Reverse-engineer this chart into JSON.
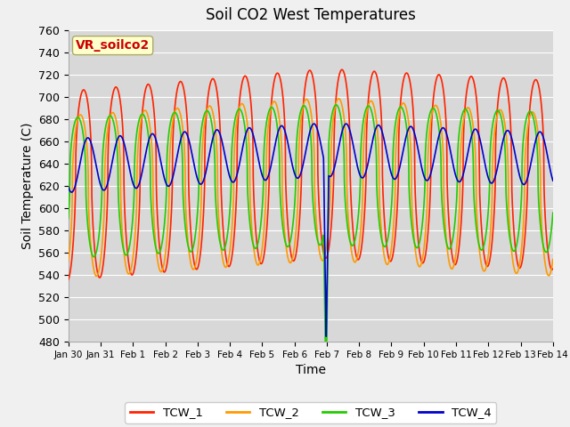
{
  "title": "Soil CO2 West Temperatures",
  "xlabel": "Time",
  "ylabel": "Soil Temperature (C)",
  "ylim": [
    480,
    760
  ],
  "yticks": [
    480,
    500,
    520,
    540,
    560,
    580,
    600,
    620,
    640,
    660,
    680,
    700,
    720,
    740,
    760
  ],
  "annotation": "VR_soilco2",
  "annotation_color": "#cc0000",
  "annotation_bg": "#ffffcc",
  "bg_color": "#d8d8d8",
  "grid_color": "#ffffff",
  "colors": {
    "TCW_1": "#ff2200",
    "TCW_2": "#ff9900",
    "TCW_3": "#22cc00",
    "TCW_4": "#0000cc"
  },
  "xtick_labels": [
    "Jan 30",
    "Jan 31",
    "Feb 1",
    "Feb 2",
    "Feb 3",
    "Feb 4",
    "Feb 5",
    "Feb 6",
    "Feb 7",
    "Feb 8",
    "Feb 9",
    "Feb 10",
    "Feb 11",
    "Feb 12",
    "Feb 13",
    "Feb 14"
  ],
  "xtick_positions": [
    0,
    1,
    2,
    3,
    4,
    5,
    6,
    7,
    8,
    9,
    10,
    11,
    12,
    13,
    14,
    15
  ],
  "figsize": [
    6.4,
    4.8
  ],
  "dpi": 100
}
